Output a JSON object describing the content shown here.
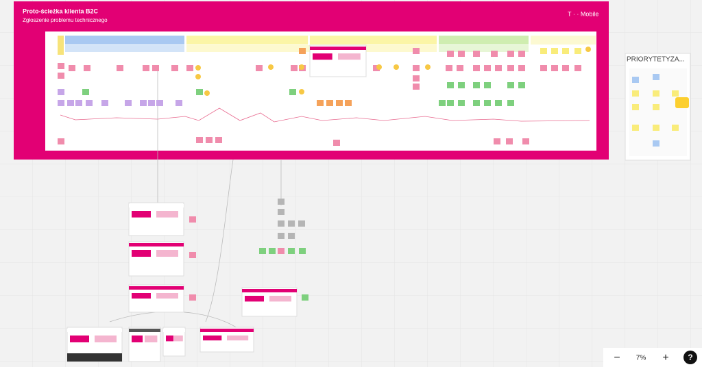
{
  "board": {
    "title": "Proto-ścieżka klienta B2C",
    "subtitle": "Zgłoszenie problemu technicznego",
    "logo": "T · · Mobile"
  },
  "side_panel": {
    "title": "PRIORYTETYZA..."
  },
  "toolbar": {
    "zoom_out": "−",
    "zoom": "7%",
    "zoom_in": "+",
    "help": "?"
  }
}
